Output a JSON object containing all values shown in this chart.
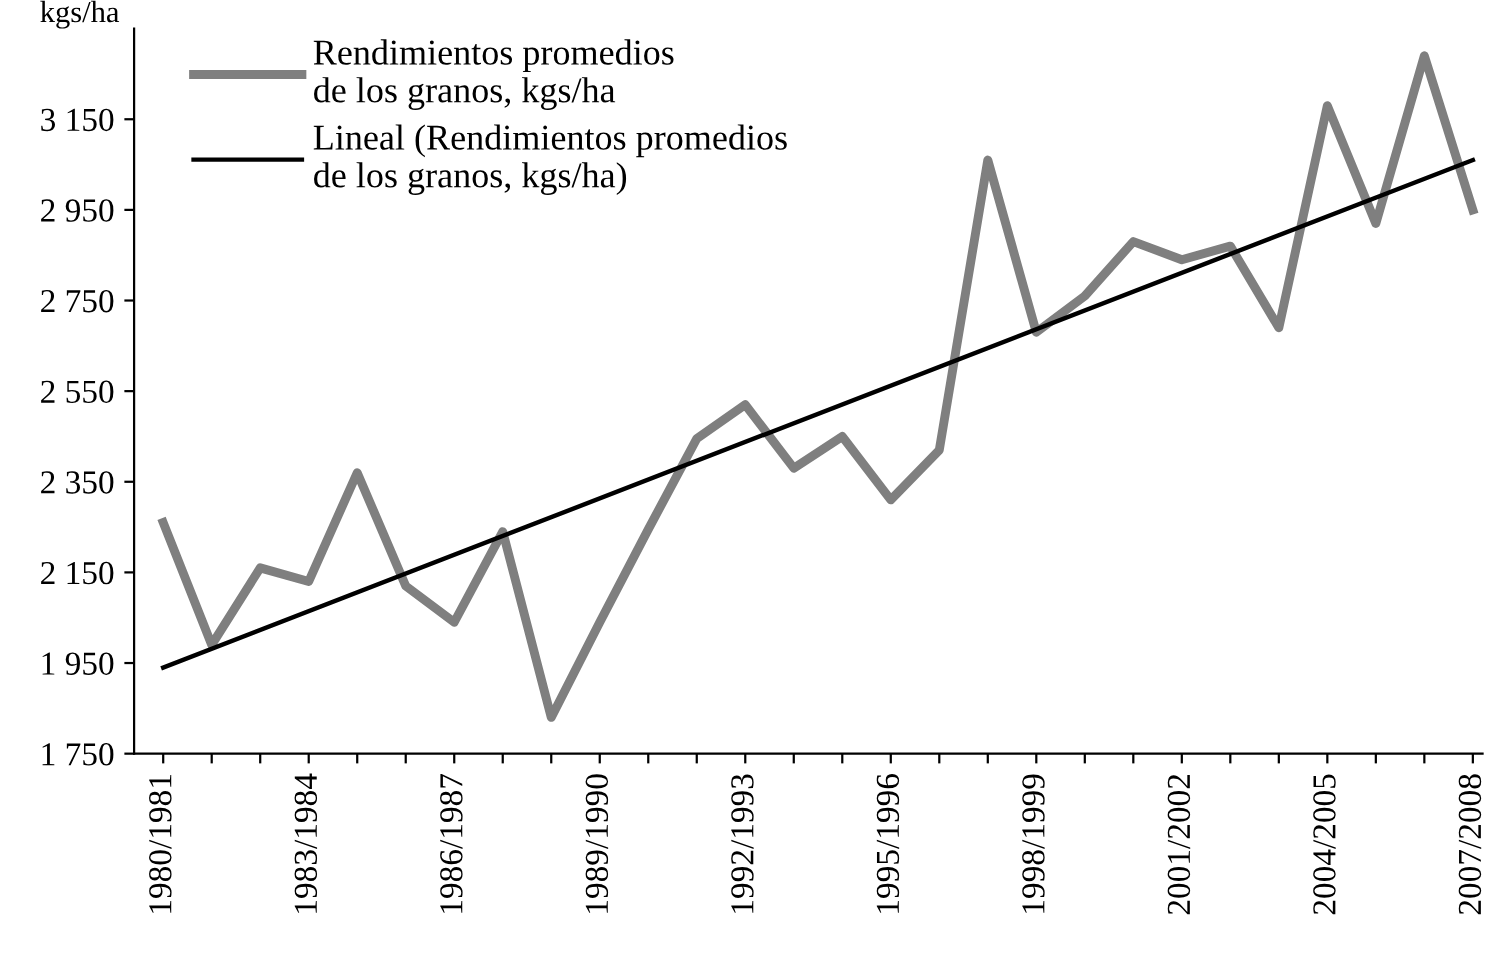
{
  "chart_data": {
    "type": "line",
    "ylabel": "kgs/ha",
    "categories": [
      "1980/1981",
      null,
      null,
      "1983/1984",
      null,
      null,
      "1986/1987",
      null,
      null,
      "1989/1990",
      null,
      null,
      "1992/1993",
      null,
      null,
      "1995/1996",
      null,
      null,
      "1998/1999",
      null,
      null,
      "2001/2002",
      null,
      null,
      "2004/2005",
      null,
      null,
      "2007/2008"
    ],
    "series": [
      {
        "name": "Rendimientos promedios\nde los granos, kgs/ha",
        "color": "#7f7f7f",
        "values": [
          2260,
          1990,
          2160,
          2130,
          2370,
          2120,
          2040,
          2240,
          1830,
          2040,
          2245,
          2445,
          2520,
          2380,
          2450,
          2310,
          2420,
          3060,
          2680,
          2760,
          2880,
          2840,
          2870,
          2690,
          3180,
          2920,
          3290,
          2950
        ]
      },
      {
        "name": "Lineal (Rendimientos promedios\nde los granos, kgs/ha)",
        "color": "#000000",
        "values": [
          1940,
          null,
          null,
          null,
          null,
          null,
          null,
          null,
          null,
          null,
          null,
          null,
          null,
          null,
          null,
          null,
          null,
          null,
          null,
          null,
          null,
          null,
          null,
          null,
          null,
          null,
          null,
          3060
        ]
      }
    ],
    "ylim": [
      1750,
      3350
    ],
    "yticks": [
      {
        "value": 1750,
        "label": "1 750"
      },
      {
        "value": 1950,
        "label": "1 950"
      },
      {
        "value": 2150,
        "label": "2 150"
      },
      {
        "value": 2350,
        "label": "2 350"
      },
      {
        "value": 2550,
        "label": "2 550"
      },
      {
        "value": 2750,
        "label": "2 750"
      },
      {
        "value": 2950,
        "label": "2 950"
      },
      {
        "value": 3150,
        "label": "3 150"
      }
    ],
    "grid": false,
    "legend": "top left",
    "marker": "none",
    "line_style": "solid"
  }
}
